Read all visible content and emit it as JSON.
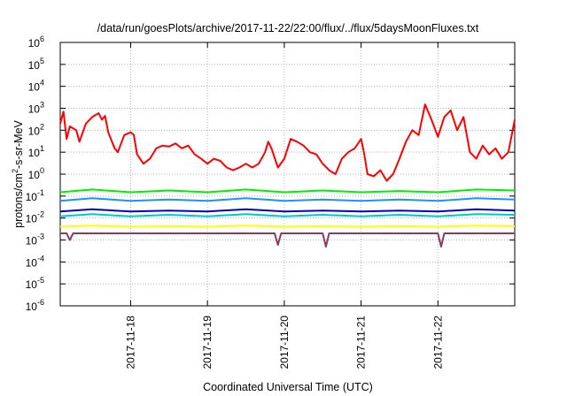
{
  "chart_data": {
    "type": "line",
    "title": "/data/run/goesPlots/archive/2017-11-22/22:00/flux/../flux/5daysMoonFluxes.txt",
    "xlabel": "Coordinated Universal Time (UTC)",
    "ylabel": {
      "base": "protons/cm",
      "sup": "2",
      "rest": "-s-sr-MeV"
    },
    "y_scale": "log",
    "ylim_exp": [
      -6,
      6
    ],
    "y_ticks": [
      {
        "base": "10",
        "exp": "-6"
      },
      {
        "base": "10",
        "exp": "-5"
      },
      {
        "base": "10",
        "exp": "-4"
      },
      {
        "base": "10",
        "exp": "-3"
      },
      {
        "base": "10",
        "exp": "-2"
      },
      {
        "base": "10",
        "exp": "-1"
      },
      {
        "base": "10",
        "exp": "0"
      },
      {
        "base": "10",
        "exp": "1"
      },
      {
        "base": "10",
        "exp": "2"
      },
      {
        "base": "10",
        "exp": "3"
      },
      {
        "base": "10",
        "exp": "4"
      },
      {
        "base": "10",
        "exp": "5"
      },
      {
        "base": "10",
        "exp": "6"
      }
    ],
    "x_range": [
      "2017-11-17T02:00",
      "2017-11-23T00:00"
    ],
    "x_ticks": [
      "2017-11-18",
      "2017-11-19",
      "2017-11-20",
      "2017-11-21",
      "2017-11-22"
    ],
    "grid": true,
    "legend": "none",
    "series": [
      {
        "color": "#ff0000",
        "points": [
          [
            "2017-11-17T02:00",
            200
          ],
          [
            "2017-11-17T03:00",
            700
          ],
          [
            "2017-11-17T04:00",
            40
          ],
          [
            "2017-11-17T05:00",
            150
          ],
          [
            "2017-11-17T07:00",
            100
          ],
          [
            "2017-11-17T08:00",
            30
          ],
          [
            "2017-11-17T10:00",
            200
          ],
          [
            "2017-11-17T12:00",
            400
          ],
          [
            "2017-11-17T14:00",
            600
          ],
          [
            "2017-11-17T15:00",
            300
          ],
          [
            "2017-11-17T16:00",
            450
          ],
          [
            "2017-11-17T17:00",
            80
          ],
          [
            "2017-11-17T19:00",
            15
          ],
          [
            "2017-11-17T20:00",
            10
          ],
          [
            "2017-11-17T22:00",
            60
          ],
          [
            "2017-11-18T00:00",
            80
          ],
          [
            "2017-11-18T01:00",
            60
          ],
          [
            "2017-11-18T02:00",
            8
          ],
          [
            "2017-11-18T04:00",
            3
          ],
          [
            "2017-11-18T06:00",
            5
          ],
          [
            "2017-11-18T08:00",
            15
          ],
          [
            "2017-11-18T10:00",
            20
          ],
          [
            "2017-11-18T12:00",
            18
          ],
          [
            "2017-11-18T14:00",
            25
          ],
          [
            "2017-11-18T16:00",
            15
          ],
          [
            "2017-11-18T18:00",
            20
          ],
          [
            "2017-11-18T20:00",
            8
          ],
          [
            "2017-11-18T22:00",
            5
          ],
          [
            "2017-11-19T00:00",
            3
          ],
          [
            "2017-11-19T02:00",
            5
          ],
          [
            "2017-11-19T04:00",
            4
          ],
          [
            "2017-11-19T06:00",
            2
          ],
          [
            "2017-11-19T08:00",
            1.5
          ],
          [
            "2017-11-19T10:00",
            2
          ],
          [
            "2017-11-19T12:00",
            3
          ],
          [
            "2017-11-19T14:00",
            2
          ],
          [
            "2017-11-19T16:00",
            3
          ],
          [
            "2017-11-19T18:00",
            10
          ],
          [
            "2017-11-19T19:00",
            30
          ],
          [
            "2017-11-19T20:00",
            15
          ],
          [
            "2017-11-19T22:00",
            2
          ],
          [
            "2017-11-20T00:00",
            5
          ],
          [
            "2017-11-20T02:00",
            40
          ],
          [
            "2017-11-20T04:00",
            30
          ],
          [
            "2017-11-20T06:00",
            20
          ],
          [
            "2017-11-20T08:00",
            10
          ],
          [
            "2017-11-20T10:00",
            8
          ],
          [
            "2017-11-20T12:00",
            3
          ],
          [
            "2017-11-20T14:00",
            1.5
          ],
          [
            "2017-11-20T16:00",
            1
          ],
          [
            "2017-11-20T18:00",
            5
          ],
          [
            "2017-11-20T20:00",
            10
          ],
          [
            "2017-11-20T22:00",
            15
          ],
          [
            "2017-11-21T00:00",
            40
          ],
          [
            "2017-11-21T01:00",
            8
          ],
          [
            "2017-11-21T02:00",
            1
          ],
          [
            "2017-11-21T04:00",
            0.8
          ],
          [
            "2017-11-21T06:00",
            1.5
          ],
          [
            "2017-11-21T08:00",
            0.5
          ],
          [
            "2017-11-21T10:00",
            1
          ],
          [
            "2017-11-21T12:00",
            5
          ],
          [
            "2017-11-21T14:00",
            30
          ],
          [
            "2017-11-21T16:00",
            100
          ],
          [
            "2017-11-21T18:00",
            60
          ],
          [
            "2017-11-21T20:00",
            1500
          ],
          [
            "2017-11-21T22:00",
            300
          ],
          [
            "2017-11-22T00:00",
            50
          ],
          [
            "2017-11-22T02:00",
            400
          ],
          [
            "2017-11-22T04:00",
            800
          ],
          [
            "2017-11-22T06:00",
            100
          ],
          [
            "2017-11-22T08:00",
            400
          ],
          [
            "2017-11-22T10:00",
            10
          ],
          [
            "2017-11-22T12:00",
            5
          ],
          [
            "2017-11-22T14:00",
            20
          ],
          [
            "2017-11-22T16:00",
            8
          ],
          [
            "2017-11-22T18:00",
            15
          ],
          [
            "2017-11-22T20:00",
            5
          ],
          [
            "2017-11-22T22:00",
            10
          ],
          [
            "2017-11-23T00:00",
            300
          ]
        ]
      },
      {
        "color": "#00ee00",
        "points": [
          [
            "2017-11-17T02:00",
            0.15
          ],
          [
            "2017-11-17T12:00",
            0.2
          ],
          [
            "2017-11-18T00:00",
            0.15
          ],
          [
            "2017-11-18T12:00",
            0.18
          ],
          [
            "2017-11-19T00:00",
            0.15
          ],
          [
            "2017-11-19T12:00",
            0.2
          ],
          [
            "2017-11-20T00:00",
            0.15
          ],
          [
            "2017-11-20T12:00",
            0.18
          ],
          [
            "2017-11-21T00:00",
            0.15
          ],
          [
            "2017-11-21T12:00",
            0.17
          ],
          [
            "2017-11-22T00:00",
            0.15
          ],
          [
            "2017-11-22T12:00",
            0.2
          ],
          [
            "2017-11-23T00:00",
            0.18
          ]
        ]
      },
      {
        "color": "#1e90ff",
        "points": [
          [
            "2017-11-17T02:00",
            0.06
          ],
          [
            "2017-11-17T12:00",
            0.08
          ],
          [
            "2017-11-18T00:00",
            0.06
          ],
          [
            "2017-11-18T12:00",
            0.07
          ],
          [
            "2017-11-19T00:00",
            0.06
          ],
          [
            "2017-11-19T12:00",
            0.08
          ],
          [
            "2017-11-20T00:00",
            0.06
          ],
          [
            "2017-11-20T12:00",
            0.07
          ],
          [
            "2017-11-21T00:00",
            0.06
          ],
          [
            "2017-11-21T12:00",
            0.07
          ],
          [
            "2017-11-22T00:00",
            0.06
          ],
          [
            "2017-11-22T12:00",
            0.08
          ],
          [
            "2017-11-23T00:00",
            0.07
          ]
        ]
      },
      {
        "color": "#00c8c8",
        "points": [
          [
            "2017-11-17T02:00",
            0.012
          ],
          [
            "2017-11-17T12:00",
            0.015
          ],
          [
            "2017-11-18T00:00",
            0.012
          ],
          [
            "2017-11-18T12:00",
            0.014
          ],
          [
            "2017-11-19T00:00",
            0.012
          ],
          [
            "2017-11-19T12:00",
            0.015
          ],
          [
            "2017-11-20T00:00",
            0.012
          ],
          [
            "2017-11-20T12:00",
            0.014
          ],
          [
            "2017-11-21T00:00",
            0.012
          ],
          [
            "2017-11-21T12:00",
            0.014
          ],
          [
            "2017-11-22T00:00",
            0.012
          ],
          [
            "2017-11-22T12:00",
            0.015
          ],
          [
            "2017-11-23T00:00",
            0.014
          ]
        ]
      },
      {
        "color": "#0000cd",
        "points": [
          [
            "2017-11-17T02:00",
            0.02
          ],
          [
            "2017-11-17T12:00",
            0.025
          ],
          [
            "2017-11-18T00:00",
            0.02
          ],
          [
            "2017-11-18T12:00",
            0.022
          ],
          [
            "2017-11-19T00:00",
            0.02
          ],
          [
            "2017-11-19T12:00",
            0.025
          ],
          [
            "2017-11-20T00:00",
            0.02
          ],
          [
            "2017-11-20T12:00",
            0.022
          ],
          [
            "2017-11-21T00:00",
            0.02
          ],
          [
            "2017-11-21T12:00",
            0.022
          ],
          [
            "2017-11-22T00:00",
            0.02
          ],
          [
            "2017-11-22T12:00",
            0.025
          ],
          [
            "2017-11-23T00:00",
            0.022
          ]
        ]
      },
      {
        "color": "#ffff00",
        "points": [
          [
            "2017-11-17T02:00",
            0.004
          ],
          [
            "2017-11-17T12:00",
            0.0045
          ],
          [
            "2017-11-18T00:00",
            0.004
          ],
          [
            "2017-11-18T12:00",
            0.0042
          ],
          [
            "2017-11-19T00:00",
            0.004
          ],
          [
            "2017-11-19T12:00",
            0.0045
          ],
          [
            "2017-11-20T00:00",
            0.004
          ],
          [
            "2017-11-20T12:00",
            0.0042
          ],
          [
            "2017-11-21T00:00",
            0.004
          ],
          [
            "2017-11-21T12:00",
            0.0042
          ],
          [
            "2017-11-22T00:00",
            0.004
          ],
          [
            "2017-11-22T12:00",
            0.0045
          ],
          [
            "2017-11-23T00:00",
            0.0042
          ]
        ]
      },
      {
        "color": "#8b3a62",
        "points": [
          [
            "2017-11-17T02:00",
            0.002
          ],
          [
            "2017-11-17T04:00",
            0.002
          ],
          [
            "2017-11-17T05:00",
            0.001
          ],
          [
            "2017-11-17T06:00",
            0.002
          ],
          [
            "2017-11-18T00:00",
            0.002
          ],
          [
            "2017-11-19T00:00",
            0.002
          ],
          [
            "2017-11-19T21:00",
            0.002
          ],
          [
            "2017-11-19T22:00",
            0.0006
          ],
          [
            "2017-11-19T23:00",
            0.002
          ],
          [
            "2017-11-20T12:00",
            0.002
          ],
          [
            "2017-11-20T13:00",
            0.0005
          ],
          [
            "2017-11-20T14:00",
            0.002
          ],
          [
            "2017-11-21T00:00",
            0.002
          ],
          [
            "2017-11-22T00:00",
            0.002
          ],
          [
            "2017-11-22T01:00",
            0.0005
          ],
          [
            "2017-11-22T02:00",
            0.002
          ],
          [
            "2017-11-23T00:00",
            0.002
          ]
        ]
      }
    ]
  }
}
